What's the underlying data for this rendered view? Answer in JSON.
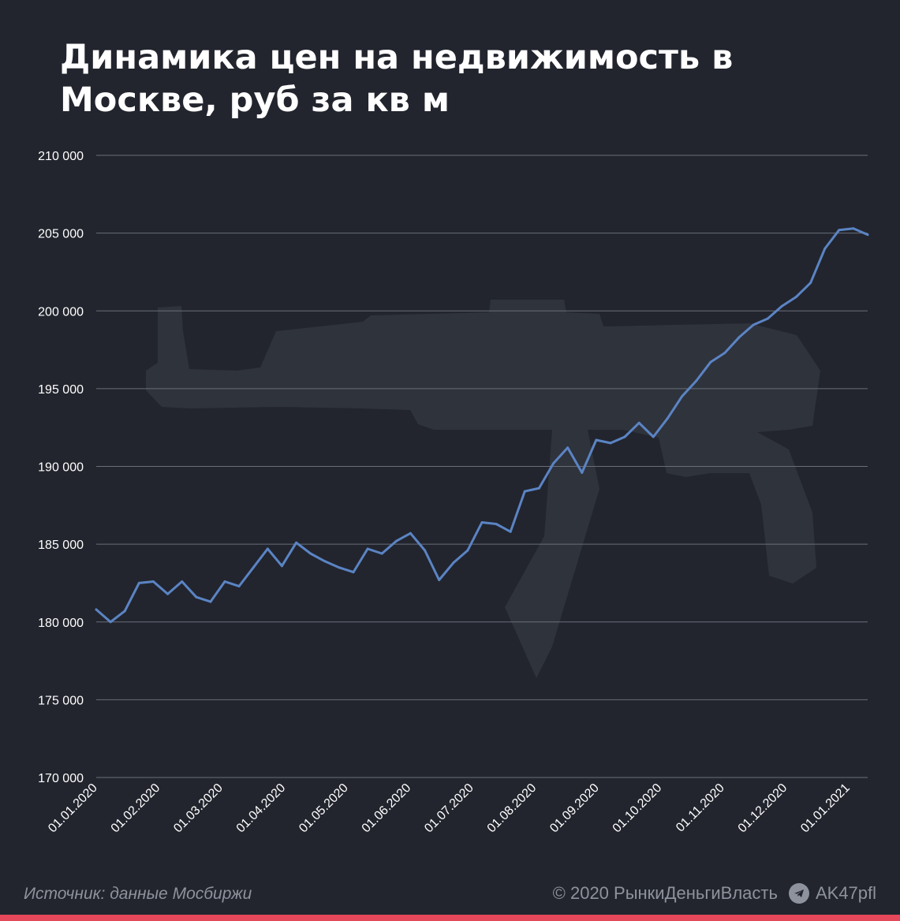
{
  "title": "Динамика цен на недвижимость в Москве, руб за кв м",
  "footer": {
    "source": "Источник: данные Мосбиржи",
    "copyright": "© 2020  РынкиДеньгиВласть",
    "channel": "AK47pfl"
  },
  "colors": {
    "background": "#22252e",
    "line": "#5b84c4",
    "grid": "#6a6e78",
    "accent_bar": "#e4485a"
  },
  "chart_data": {
    "type": "line",
    "title": "Динамика цен на недвижимость в Москве, руб за кв м",
    "ylim": [
      170000,
      210000
    ],
    "yticks": [
      "170 000",
      "175 000",
      "180 000",
      "185 000",
      "190 000",
      "195 000",
      "200 000",
      "205 000",
      "210 000"
    ],
    "xticks": [
      "01.01.2020",
      "01.02.2020",
      "01.03.2020",
      "01.04.2020",
      "01.05.2020",
      "01.06.2020",
      "01.07.2020",
      "01.08.2020",
      "01.09.2020",
      "01.10.2020",
      "01.11.2020",
      "01.12.2020",
      "01.01.2021"
    ],
    "x_period": "weekly",
    "grid": true,
    "series": [
      {
        "values": [
          180800,
          180000,
          180700,
          182500,
          182600,
          181800,
          182600,
          181600,
          181300,
          182600,
          182300,
          183500,
          184700,
          183600,
          185100,
          184400,
          183900,
          183500,
          183200,
          184700,
          184400,
          185200,
          185700,
          184600,
          182700,
          183800,
          184600,
          186400,
          186300,
          185800,
          188400,
          188600,
          190200,
          191200,
          189600,
          191700,
          191500,
          191900,
          192800,
          191900,
          193100,
          194500,
          195500,
          196700,
          197300,
          198300,
          199100,
          199500,
          200300,
          200900,
          201800,
          204000,
          205200,
          205300,
          204900
        ]
      }
    ]
  }
}
